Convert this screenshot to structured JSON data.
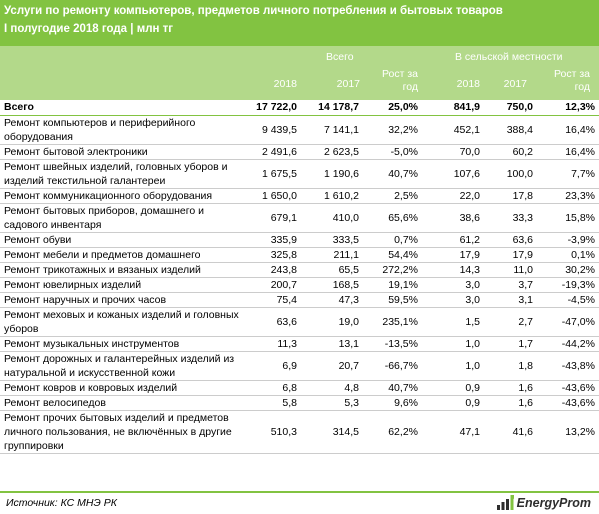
{
  "title": {
    "line1": "Услуги по ремонту компьютеров, предметов личного потребления и бытовых товаров",
    "line2": "I полугодие 2018 года | млн тг"
  },
  "columns": {
    "group_total": "Всего",
    "group_rural": "В сельской местности",
    "year_2018": "2018",
    "year_2017": "2017",
    "growth": "Рост за год"
  },
  "total_row": {
    "name": "Всего",
    "v2018": "17 722,0",
    "v2017": "14 178,7",
    "growth": "25,0%",
    "r2018": "841,9",
    "r2017": "750,0",
    "rgrowth": "12,3%"
  },
  "rows": [
    {
      "name": "Ремонт компьютеров и периферийного оборудования",
      "v2018": "9 439,5",
      "v2017": "7 141,1",
      "growth": "32,2%",
      "r2018": "452,1",
      "r2017": "388,4",
      "rgrowth": "16,4%"
    },
    {
      "name": "Ремонт бытовой электроники",
      "v2018": "2 491,6",
      "v2017": "2 623,5",
      "growth": "-5,0%",
      "r2018": "70,0",
      "r2017": "60,2",
      "rgrowth": "16,4%"
    },
    {
      "name": "Ремонт швейных изделий, головных уборов и изделий текстильной галантереи",
      "v2018": "1 675,5",
      "v2017": "1 190,6",
      "growth": "40,7%",
      "r2018": "107,6",
      "r2017": "100,0",
      "rgrowth": "7,7%"
    },
    {
      "name": "Ремонт коммуникационного оборудования",
      "v2018": "1 650,0",
      "v2017": "1 610,2",
      "growth": "2,5%",
      "r2018": "22,0",
      "r2017": "17,8",
      "rgrowth": "23,3%"
    },
    {
      "name": "Ремонт бытовых приборов, домашнего и садового инвентаря",
      "v2018": "679,1",
      "v2017": "410,0",
      "growth": "65,6%",
      "r2018": "38,6",
      "r2017": "33,3",
      "rgrowth": "15,8%"
    },
    {
      "name": "Ремонт обуви",
      "v2018": "335,9",
      "v2017": "333,5",
      "growth": "0,7%",
      "r2018": "61,2",
      "r2017": "63,6",
      "rgrowth": "-3,9%"
    },
    {
      "name": "Ремонт мебели и предметов домашнего",
      "v2018": "325,8",
      "v2017": "211,1",
      "growth": "54,4%",
      "r2018": "17,9",
      "r2017": "17,9",
      "rgrowth": "0,1%"
    },
    {
      "name": "Ремонт трикотажных и вязаных изделий",
      "v2018": "243,8",
      "v2017": "65,5",
      "growth": "272,2%",
      "r2018": "14,3",
      "r2017": "11,0",
      "rgrowth": "30,2%"
    },
    {
      "name": "Ремонт ювелирных изделий",
      "v2018": "200,7",
      "v2017": "168,5",
      "growth": "19,1%",
      "r2018": "3,0",
      "r2017": "3,7",
      "rgrowth": "-19,3%"
    },
    {
      "name": "Ремонт наручных и прочих часов",
      "v2018": "75,4",
      "v2017": "47,3",
      "growth": "59,5%",
      "r2018": "3,0",
      "r2017": "3,1",
      "rgrowth": "-4,5%"
    },
    {
      "name": "Ремонт меховых и кожаных изделий и головных уборов",
      "v2018": "63,6",
      "v2017": "19,0",
      "growth": "235,1%",
      "r2018": "1,5",
      "r2017": "2,7",
      "rgrowth": "-47,0%"
    },
    {
      "name": "Ремонт музыкальных инструментов",
      "v2018": "11,3",
      "v2017": "13,1",
      "growth": "-13,5%",
      "r2018": "1,0",
      "r2017": "1,7",
      "rgrowth": "-44,2%"
    },
    {
      "name": "Ремонт дорожных и галантерейных изделий из натуральной и искусственной кожи",
      "v2018": "6,9",
      "v2017": "20,7",
      "growth": "-66,7%",
      "r2018": "1,0",
      "r2017": "1,8",
      "rgrowth": "-43,8%"
    },
    {
      "name": "Ремонт ковров и ковровых изделий",
      "v2018": "6,8",
      "v2017": "4,8",
      "growth": "40,7%",
      "r2018": "0,9",
      "r2017": "1,6",
      "rgrowth": "-43,6%"
    },
    {
      "name": "Ремонт велосипедов",
      "v2018": "5,8",
      "v2017": "5,3",
      "growth": "9,6%",
      "r2018": "0,9",
      "r2017": "1,6",
      "rgrowth": "-43,6%"
    },
    {
      "name": "Ремонт прочих бытовых изделий и предметов личного пользования, не включённых в другие группировки",
      "v2018": "510,3",
      "v2017": "314,5",
      "growth": "62,2%",
      "r2018": "47,1",
      "r2017": "41,6",
      "rgrowth": "13,2%"
    }
  ],
  "footer": {
    "source": "Источник: КС МНЭ РК",
    "logo_text": "EnergyProm",
    "logo_icon": "energyprom-logo-icon"
  },
  "colors": {
    "header_bg": "#82c341",
    "colhead_bg": "#b3d98a",
    "rule": "#82c341"
  }
}
